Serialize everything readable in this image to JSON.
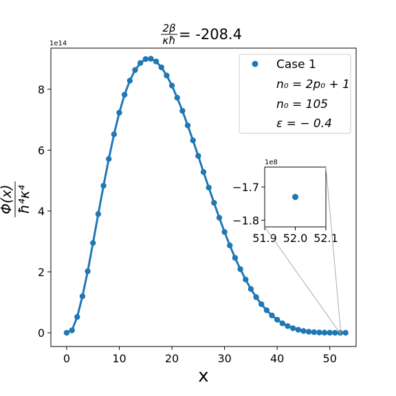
{
  "chart_data": [
    {
      "type": "scatter",
      "title_lhs_numerator": "2β",
      "title_lhs_denominator": "κħ",
      "title_rhs": " = -208.4",
      "xlabel": "x",
      "ylabel_numerator": "Φ(x)",
      "ylabel_denominator": "ħ⁴κ⁴",
      "y_offset_text": "1e14",
      "xlim": [
        -3,
        55
      ],
      "ylim": [
        -0.45,
        9.35
      ],
      "y_unit_scale": 100000000000000.0,
      "x_ticks": [
        0,
        10,
        20,
        30,
        40,
        50
      ],
      "y_ticks": [
        0,
        2,
        4,
        6,
        8
      ],
      "x_tick_labels": [
        "0",
        "10",
        "20",
        "30",
        "40",
        "50"
      ],
      "y_tick_labels": [
        "0",
        "2",
        "4",
        "6",
        "8"
      ],
      "series": [
        {
          "name": "Case 1",
          "color": "#1f77b4",
          "x": [
            0,
            1,
            2,
            3,
            4,
            5,
            6,
            7,
            8,
            9,
            10,
            11,
            12,
            13,
            14,
            15,
            16,
            17,
            18,
            19,
            20,
            21,
            22,
            23,
            24,
            25,
            26,
            27,
            28,
            29,
            30,
            31,
            32,
            33,
            34,
            35,
            36,
            37,
            38,
            39,
            40,
            41,
            42,
            43,
            44,
            45,
            46,
            47,
            48,
            49,
            50,
            51,
            52,
            53
          ],
          "y": [
            0,
            0.08,
            0.52,
            1.2,
            2.02,
            2.95,
            3.9,
            4.83,
            5.71,
            6.52,
            7.23,
            7.82,
            8.28,
            8.63,
            8.86,
            8.99,
            9.0,
            8.91,
            8.72,
            8.45,
            8.12,
            7.72,
            7.29,
            6.81,
            6.32,
            5.81,
            5.28,
            4.77,
            4.27,
            3.78,
            3.31,
            2.87,
            2.46,
            2.09,
            1.75,
            1.44,
            1.17,
            0.94,
            0.74,
            0.57,
            0.43,
            0.31,
            0.22,
            0.15,
            0.1,
            0.06,
            0.035,
            0.02,
            0.01,
            0.005,
            0.002,
            0.001,
            -1.7e-06,
            0.0
          ]
        }
      ],
      "legend": {
        "placement": "upper right",
        "entries": [
          "Case 1",
          "n₀ = 2p₀ + 1",
          "n₀ = 105",
          "ε = − 0.4"
        ]
      }
    },
    {
      "type": "scatter",
      "role": "inset",
      "y_offset_text": "1e8",
      "xlim": [
        51.9,
        52.1
      ],
      "ylim": [
        -1.82,
        -1.64
      ],
      "y_unit_scale": 100000000.0,
      "x_ticks": [
        51.9,
        52.0,
        52.1
      ],
      "y_ticks": [
        -1.8,
        -1.7
      ],
      "x_tick_labels": [
        "51.9",
        "52.0",
        "52.1"
      ],
      "y_tick_labels": [
        "−1.8",
        "−1.7"
      ],
      "series": [
        {
          "name": "Case 1",
          "color": "#1f77b4",
          "x": [
            52.0
          ],
          "y": [
            -1.73
          ]
        }
      ]
    }
  ]
}
